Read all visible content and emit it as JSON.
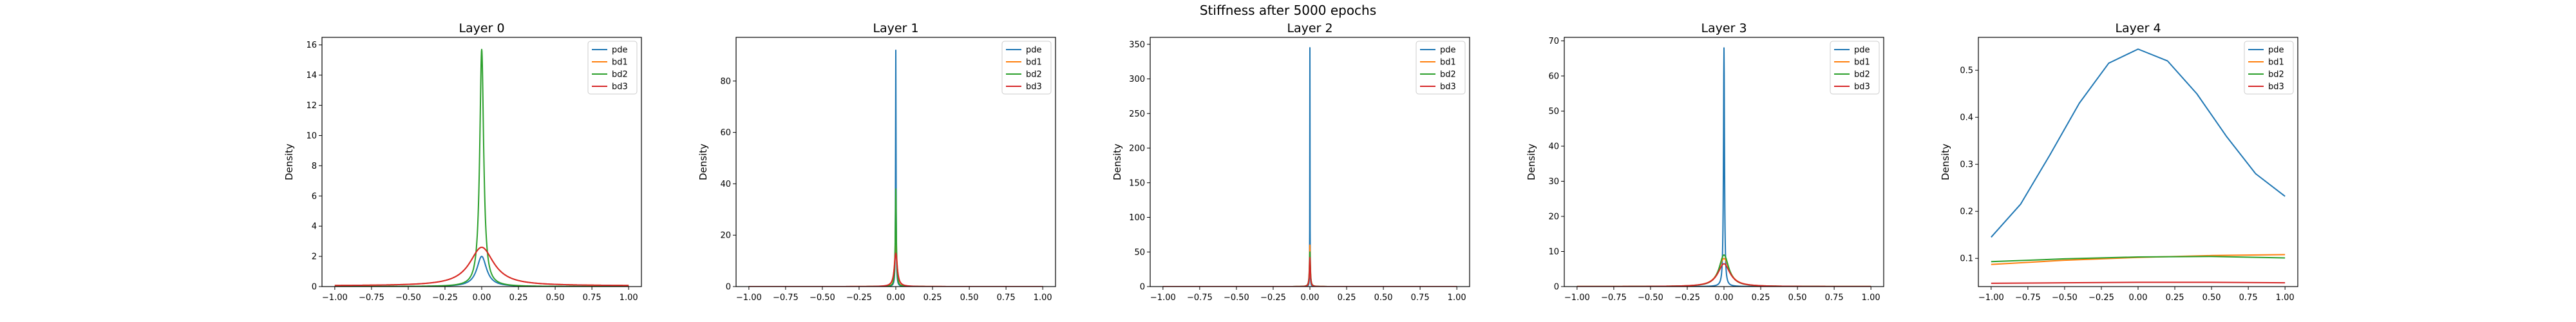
{
  "figure": {
    "suptitle": "Stiffness after 5000 epochs"
  },
  "colors": {
    "pde": "#1f77b4",
    "bd1": "#ff7f0e",
    "bd2": "#2ca02c",
    "bd3": "#d62728"
  },
  "chart_data": [
    {
      "type": "line",
      "title": "Layer 0",
      "xlabel": "",
      "ylabel": "Density",
      "xlim": [
        -1.0,
        1.0
      ],
      "ylim": [
        0,
        16.5
      ],
      "xticks": [
        -1.0,
        -0.75,
        -0.5,
        -0.25,
        0.0,
        0.25,
        0.5,
        0.75,
        1.0
      ],
      "xtick_labels": [
        "−1.00",
        "−0.75",
        "−0.50",
        "−0.25",
        "0.00",
        "0.25",
        "0.50",
        "0.75",
        "1.00"
      ],
      "yticks": [
        0,
        2,
        4,
        6,
        8,
        10,
        12,
        14,
        16
      ],
      "ytick_labels": [
        "0",
        "2",
        "4",
        "6",
        "8",
        "10",
        "12",
        "14",
        "16"
      ],
      "legend_position": "top-right",
      "series": [
        {
          "name": "pde",
          "peak": 2.0,
          "width": 0.04,
          "floor": 0.0
        },
        {
          "name": "bd1",
          "peak": 2.6,
          "width": 0.1,
          "floor": 0.05
        },
        {
          "name": "bd2",
          "peak": 15.7,
          "width": 0.016,
          "floor": 0.0
        },
        {
          "name": "bd3",
          "peak": 2.6,
          "width": 0.1,
          "floor": 0.05
        }
      ]
    },
    {
      "type": "line",
      "title": "Layer 1",
      "xlabel": "",
      "ylabel": "Density",
      "xlim": [
        -1.0,
        1.0
      ],
      "ylim": [
        0,
        97
      ],
      "xticks": [
        -1.0,
        -0.75,
        -0.5,
        -0.25,
        0.0,
        0.25,
        0.5,
        0.75,
        1.0
      ],
      "xtick_labels": [
        "−1.00",
        "−0.75",
        "−0.50",
        "−0.25",
        "0.00",
        "0.25",
        "0.50",
        "0.75",
        "1.00"
      ],
      "yticks": [
        0,
        20,
        40,
        60,
        80
      ],
      "ytick_labels": [
        "0",
        "20",
        "40",
        "60",
        "80"
      ],
      "legend_position": "top-right",
      "series": [
        {
          "name": "pde",
          "peak": 92,
          "width": 0.002,
          "floor": 0.0
        },
        {
          "name": "bd1",
          "peak": 16,
          "width": 0.01,
          "floor": 0.0
        },
        {
          "name": "bd2",
          "peak": 38,
          "width": 0.004,
          "floor": 0.0
        },
        {
          "name": "bd3",
          "peak": 13,
          "width": 0.012,
          "floor": 0.0
        }
      ]
    },
    {
      "type": "line",
      "title": "Layer 2",
      "xlabel": "",
      "ylabel": "Density",
      "xlim": [
        -1.0,
        1.0
      ],
      "ylim": [
        0,
        360
      ],
      "xticks": [
        -1.0,
        -0.75,
        -0.5,
        -0.25,
        0.0,
        0.25,
        0.5,
        0.75,
        1.0
      ],
      "xtick_labels": [
        "−1.00",
        "−0.75",
        "−0.50",
        "−0.25",
        "0.00",
        "0.25",
        "0.50",
        "0.75",
        "1.00"
      ],
      "yticks": [
        0,
        50,
        100,
        150,
        200,
        250,
        300,
        350
      ],
      "ytick_labels": [
        "0",
        "50",
        "100",
        "150",
        "200",
        "250",
        "300",
        "350"
      ],
      "legend_position": "top-right",
      "series": [
        {
          "name": "pde",
          "peak": 345,
          "width": 0.0008,
          "floor": 0.0
        },
        {
          "name": "bd1",
          "peak": 60,
          "width": 0.003,
          "floor": 0.0
        },
        {
          "name": "bd2",
          "peak": 50,
          "width": 0.004,
          "floor": 0.0
        },
        {
          "name": "bd3",
          "peak": 42,
          "width": 0.004,
          "floor": 0.0
        }
      ]
    },
    {
      "type": "line",
      "title": "Layer 3",
      "xlabel": "",
      "ylabel": "Density",
      "xlim": [
        -1.0,
        1.0
      ],
      "ylim": [
        0,
        71
      ],
      "xticks": [
        -1.0,
        -0.75,
        -0.5,
        -0.25,
        0.0,
        0.25,
        0.5,
        0.75,
        1.0
      ],
      "xtick_labels": [
        "−1.00",
        "−0.75",
        "−0.50",
        "−0.25",
        "0.00",
        "0.25",
        "0.50",
        "0.75",
        "1.00"
      ],
      "yticks": [
        0,
        10,
        20,
        30,
        40,
        50,
        60,
        70
      ],
      "ytick_labels": [
        "0",
        "10",
        "20",
        "30",
        "40",
        "50",
        "60",
        "70"
      ],
      "legend_position": "top-right",
      "series": [
        {
          "name": "pde",
          "peak": 68,
          "width": 0.004,
          "floor": 0.0
        },
        {
          "name": "bd1",
          "peak": 8,
          "width": 0.045,
          "floor": 0.0
        },
        {
          "name": "bd2",
          "peak": 9,
          "width": 0.04,
          "floor": 0.0
        },
        {
          "name": "bd3",
          "peak": 6.5,
          "width": 0.05,
          "floor": 0.0
        }
      ]
    },
    {
      "type": "line",
      "title": "Layer 4",
      "xlabel": "",
      "ylabel": "Density",
      "xlim": [
        -1.0,
        1.0
      ],
      "ylim": [
        0.04,
        0.57
      ],
      "xticks": [
        -1.0,
        -0.75,
        -0.5,
        -0.25,
        0.0,
        0.25,
        0.5,
        0.75,
        1.0
      ],
      "xtick_labels": [
        "−1.00",
        "−0.75",
        "−0.50",
        "−0.25",
        "0.00",
        "0.25",
        "0.50",
        "0.75",
        "1.00"
      ],
      "yticks": [
        0.1,
        0.2,
        0.3,
        0.4,
        0.5
      ],
      "ytick_labels": [
        "0.1",
        "0.2",
        "0.3",
        "0.4",
        "0.5"
      ],
      "legend_position": "top-right",
      "series": [
        {
          "name": "pde",
          "x": [
            -1.0,
            -0.8,
            -0.6,
            -0.4,
            -0.2,
            0.0,
            0.2,
            0.4,
            0.6,
            0.8,
            1.0
          ],
          "y": [
            0.145,
            0.215,
            0.32,
            0.43,
            0.515,
            0.545,
            0.52,
            0.45,
            0.36,
            0.28,
            0.232
          ]
        },
        {
          "name": "bd1",
          "x": [
            -1.0,
            -0.5,
            0.0,
            0.5,
            1.0
          ],
          "y": [
            0.087,
            0.096,
            0.102,
            0.106,
            0.108
          ]
        },
        {
          "name": "bd2",
          "x": [
            -1.0,
            -0.5,
            0.0,
            0.5,
            1.0
          ],
          "y": [
            0.093,
            0.099,
            0.103,
            0.104,
            0.101
          ]
        },
        {
          "name": "bd3",
          "x": [
            -1.0,
            -0.5,
            0.0,
            0.5,
            1.0
          ],
          "y": [
            0.047,
            0.048,
            0.049,
            0.049,
            0.048
          ]
        }
      ]
    }
  ]
}
